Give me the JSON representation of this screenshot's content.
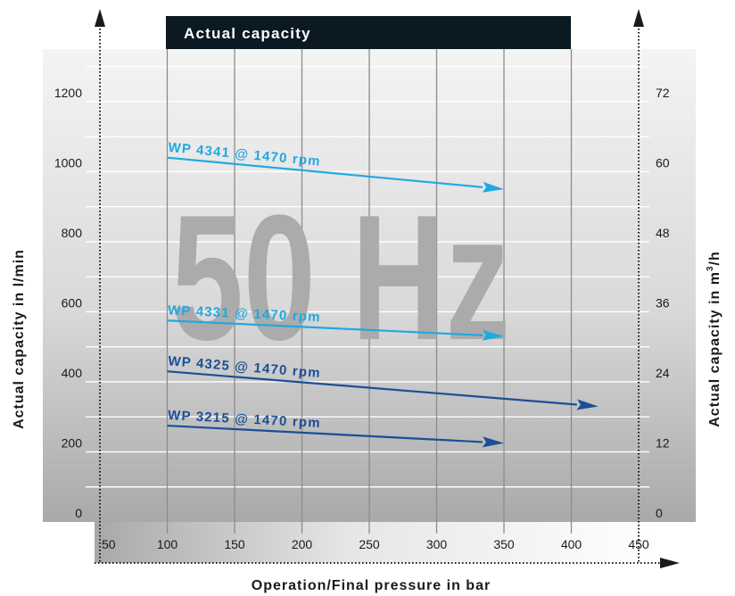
{
  "chart_data": {
    "type": "line",
    "title": "Actual capacity",
    "watermark": "50 Hz",
    "xlabel": "Operation/Final pressure in bar",
    "ylabel_left": "Actual capacity in l/min",
    "ylabel_right_prefix": "Actual capacity in m",
    "ylabel_right_sup": "3",
    "ylabel_right_suffix": "/h",
    "x_ticks": [
      "50",
      "100",
      "150",
      "200",
      "250",
      "300",
      "350",
      "400",
      "450"
    ],
    "y_ticks_left": [
      "0",
      "200",
      "400",
      "600",
      "800",
      "1000",
      "1200"
    ],
    "y_ticks_right": [
      "0",
      "12",
      "24",
      "36",
      "48",
      "60",
      "72"
    ],
    "xlim": [
      50,
      450
    ],
    "ylim": [
      0,
      1350
    ],
    "grid": true,
    "series": [
      {
        "name": "WP 4341 @ 1470 rpm",
        "color": "#1fa8e0",
        "x": [
          100,
          350
        ],
        "y": [
          1040,
          950
        ]
      },
      {
        "name": "WP 4331 @ 1470 rpm",
        "color": "#1fa8e0",
        "x": [
          100,
          350
        ],
        "y": [
          575,
          530
        ]
      },
      {
        "name": "WP 4325 @ 1470 rpm",
        "color": "#1a4f96",
        "x": [
          100,
          420
        ],
        "y": [
          430,
          330
        ]
      },
      {
        "name": "WP 3215 @ 1470 rpm",
        "color": "#1a4f96",
        "x": [
          100,
          350
        ],
        "y": [
          275,
          225
        ]
      }
    ],
    "colors": {
      "header_band": "#0b1a22",
      "axis": "#1a1a1a"
    }
  }
}
